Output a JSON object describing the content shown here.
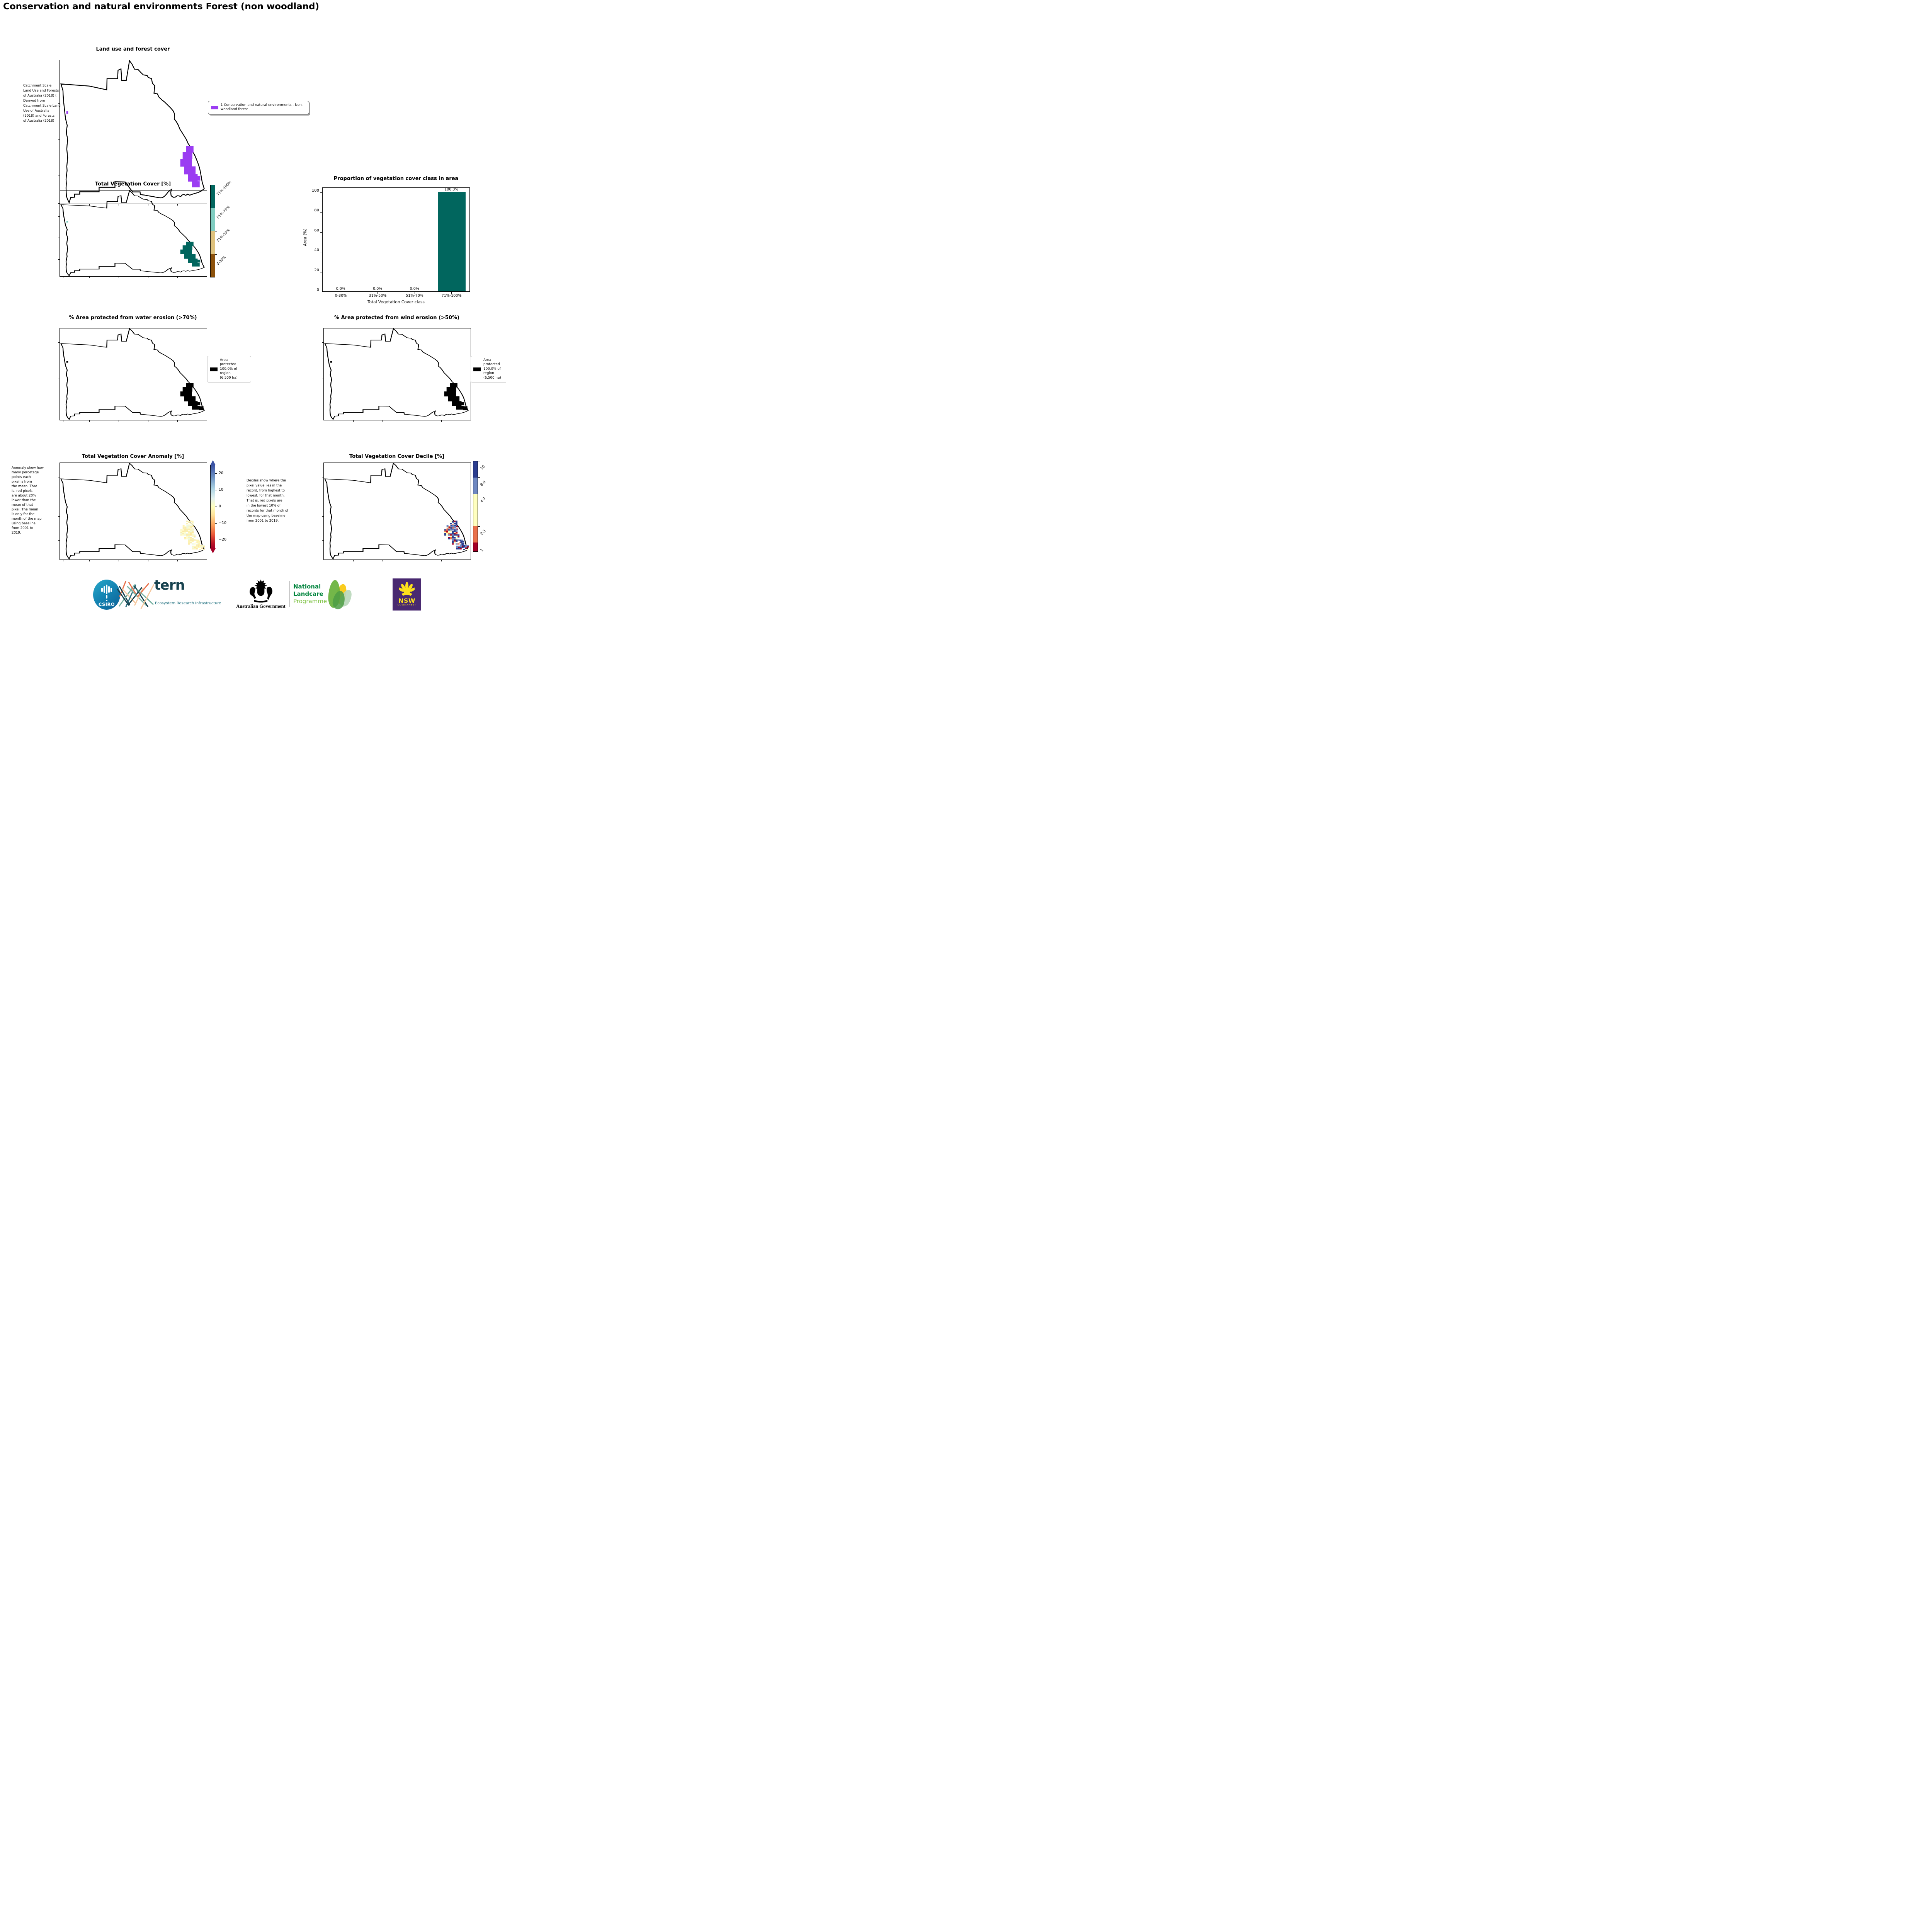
{
  "page_title": "Conservation and natural environments Forest (non woodland)",
  "panels": {
    "land_use": {
      "title": "Land use and forest cover",
      "side_note": " Catchment Scale\nLand Use and Forests\nof Australia (2018) (\nDerived from\nCatchment Scale Land\nUse of Australia\n(2018) and Forests\nof Australia (2018)",
      "legend": {
        "swatch_color": "#9b3df2",
        "label": "1 Conservation and natural environments - Non-\nwoodland forest"
      }
    },
    "veg_cover": {
      "title": "Total Vegetation Cover [%]",
      "colorbar": {
        "labels": [
          "71%-100%",
          "51%-70%",
          "31%-50%",
          "0-30%"
        ],
        "colors": [
          "#01665e",
          "#80cdc1",
          "#dfc27d",
          "#8c510a"
        ]
      }
    },
    "water_erosion": {
      "title": "% Area protected from water erosion (>70%)",
      "legend": {
        "swatch_color": "#000000",
        "label": "Area\nprotected\n100.0% of\nregion\n(6,500 ha)"
      }
    },
    "wind_erosion": {
      "title": "% Area protected from wind erosion (>50%)",
      "legend": {
        "swatch_color": "#000000",
        "label": "Area\nprotected\n100.0% of\nregion\n(6,500 ha)"
      }
    },
    "anomaly": {
      "title": "Total Vegetation Cover Anomaly [%]",
      "side_note": "Anomaly show how\nmany percetage\npoints each\npixel is from\nthe mean. That\nis, red pixels\nare about 20%\nlower than the\nmean of that\npixel. The mean\nis only for the\nmonth of the map\nusing baseline\nfrom 2001 to\n2019.",
      "colorbar": {
        "ticks": [
          "20",
          "10",
          "0",
          "−10",
          "−20"
        ],
        "gradient_stops": [
          "#3a53a4 0%",
          "#6f94c4 15%",
          "#abd2e3 28%",
          "#e4f2f0 40%",
          "#ffffbf 50%",
          "#fee49c 60%",
          "#fba35d 72%",
          "#e95738 84%",
          "#bb1526 94%",
          "#a50026 100%"
        ]
      },
      "map_palette": [
        "#fdf3b3",
        "#f8edaf",
        "#fdfdd0",
        "#fce8a4",
        "#eef7e0",
        "#fdf6c0"
      ]
    },
    "decile": {
      "title": "Total Vegetation Cover Decile [%]",
      "side_note": "Deciles show where the\npixel value lies in the\nrecord, from highest to\nlowest, for that month.\nThat is, red pixels are\nin the lowest 10% of\nrecords for that month of\nthe map using baseline\nfrom 2001 to 2019.",
      "colorbar": {
        "labels": [
          "10",
          "8-9",
          "4-7",
          "2-3",
          "1"
        ],
        "colors": [
          "#2b3d8f",
          "#6f88c1",
          "#ffffbf",
          "#ea714b",
          "#a50026"
        ],
        "heights_pct": [
          18,
          18,
          36,
          18,
          10
        ]
      }
    }
  },
  "chart_data": {
    "type": "bar",
    "title": "Proportion of vegetation cover class in area",
    "categories": [
      "0-30%",
      "31%-50%",
      "51%-70%",
      "71%-100%"
    ],
    "values": [
      0.0,
      0.0,
      0.0,
      100.0
    ],
    "value_labels": [
      "0.0%",
      "0.0%",
      "0.0%",
      "100.0%"
    ],
    "xlabel": "Total Vegetation Cover class",
    "ylabel": "Area (%)",
    "ylim": [
      0,
      105
    ],
    "yticks": [
      "0",
      "20",
      "40",
      "60",
      "80",
      "100"
    ],
    "bar_color": "#01665e",
    "grid": false,
    "legend": "none"
  },
  "footer": {
    "csiro": {
      "label": "CSIRO"
    },
    "tern": {
      "wordmark": "tern",
      "subtitle": "Ecosystem Research Infrastructure"
    },
    "aus_gov": {
      "label": "Australian Government"
    },
    "landcare": {
      "line1": "National",
      "line2": "Landcare",
      "line3": "Programme"
    },
    "nsw": {
      "label": "NSW",
      "sub": "GOVERNMENT"
    }
  }
}
